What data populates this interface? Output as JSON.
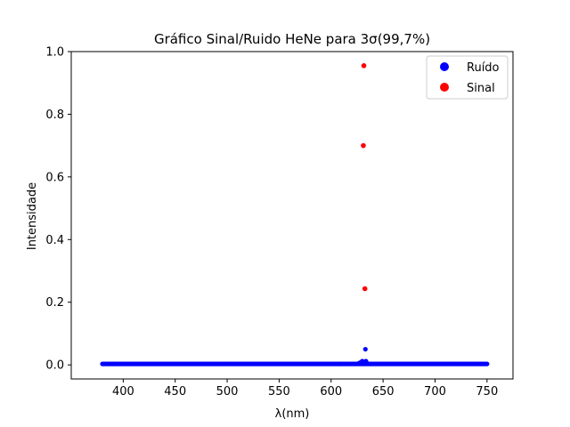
{
  "chart_data": {
    "type": "scatter",
    "title": "Gráfico Sinal/Ruido HeNe para 3σ(99,7%)",
    "xlabel": "λ(nm)",
    "ylabel": "Intensidade",
    "xlim": [
      350,
      775
    ],
    "ylim": [
      -0.045,
      1.0
    ],
    "xticks": [
      400,
      450,
      500,
      550,
      600,
      650,
      700,
      750
    ],
    "yticks": [
      0.0,
      0.2,
      0.4,
      0.6,
      0.8,
      1.0
    ],
    "xtick_labels": [
      "400",
      "450",
      "500",
      "550",
      "600",
      "650",
      "700",
      "750"
    ],
    "ytick_labels": [
      "0.0",
      "0.2",
      "0.4",
      "0.6",
      "0.8",
      "1.0"
    ],
    "grid": false,
    "legend_position": "top-right",
    "series": [
      {
        "name": "Ruído",
        "color": "#0000ff",
        "noise_x_range": [
          380,
          750
        ],
        "noise_step": 1.25,
        "noise_level": 0.003,
        "extra_points": [
          {
            "x": 627,
            "y": 0.006
          },
          {
            "x": 628.5,
            "y": 0.008
          },
          {
            "x": 630,
            "y": 0.012
          },
          {
            "x": 631,
            "y": 0.009
          },
          {
            "x": 633.5,
            "y": 0.012
          },
          {
            "x": 634.5,
            "y": 0.006
          },
          {
            "x": 633,
            "y": 0.05
          }
        ]
      },
      {
        "name": "Sinal",
        "color": "#ff0000",
        "points": [
          {
            "x": 631.5,
            "y": 0.955
          },
          {
            "x": 631,
            "y": 0.7
          },
          {
            "x": 632.5,
            "y": 0.243
          }
        ]
      }
    ]
  }
}
